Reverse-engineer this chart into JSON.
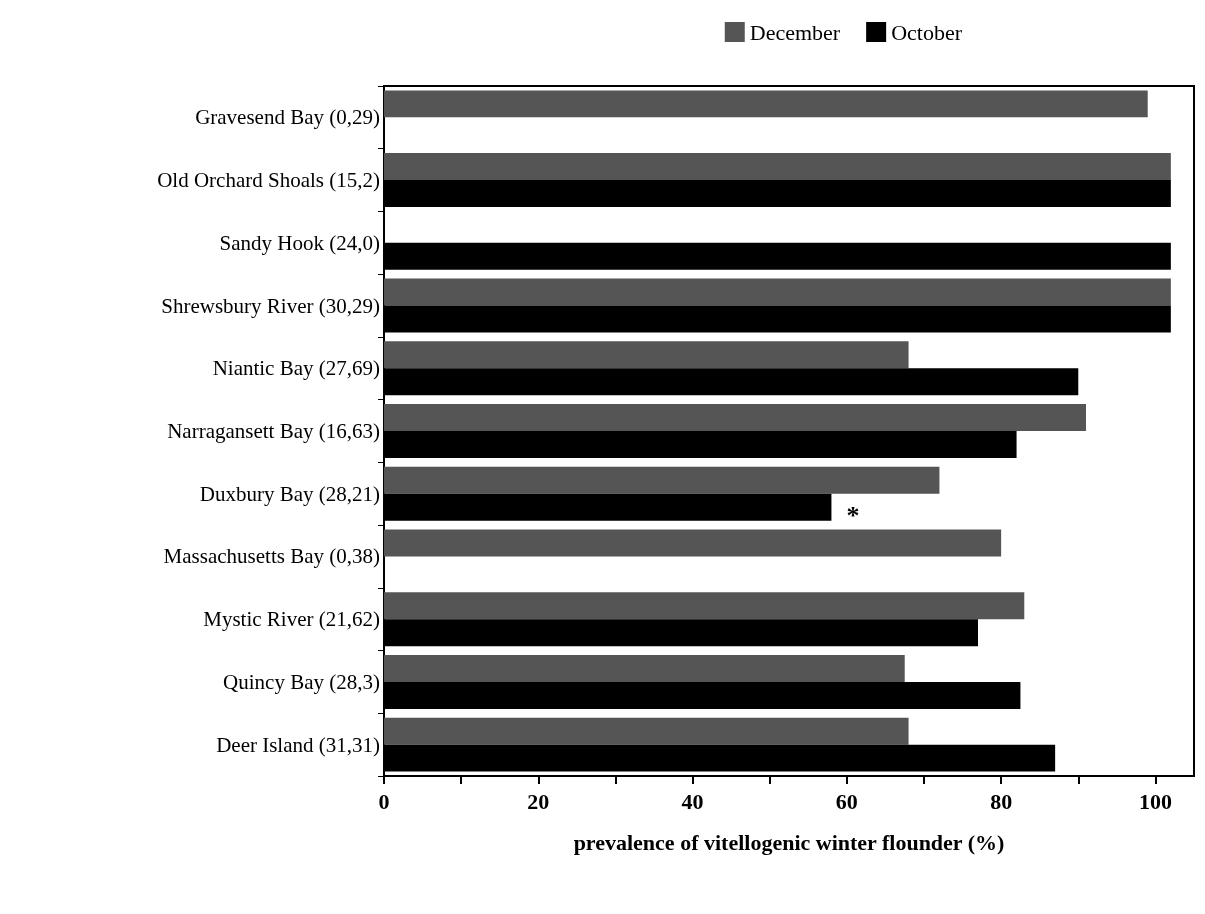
{
  "chart_data": {
    "type": "bar",
    "orientation": "horizontal",
    "xlabel": "prevalence of vitellogenic winter flounder (%)",
    "categories": [
      "Gravesend Bay (0,29)",
      "Old Orchard Shoals (15,2)",
      "Sandy Hook (24,0)",
      "Shrewsbury River (30,29)",
      "Niantic Bay (27,69)",
      "Narragansett Bay (16,63)",
      "Duxbury Bay (28,21)",
      "Massachusetts Bay (0,38)",
      "Mystic River (21,62)",
      "Quincy Bay (28,3)",
      "Deer Island (31,31)"
    ],
    "series": [
      {
        "name": "December",
        "color": "#555555",
        "values": [
          99,
          102,
          null,
          102,
          68,
          91,
          72,
          80,
          83,
          67.5,
          68
        ]
      },
      {
        "name": "October",
        "color": "#000000",
        "values": [
          null,
          102,
          102,
          102,
          90,
          82,
          58,
          null,
          77,
          82.5,
          87
        ]
      }
    ],
    "xlim": [
      0,
      105
    ],
    "xticks": [
      0,
      {
        "value": 10,
        "label": null
      },
      20,
      {
        "value": 30,
        "label": null
      },
      40,
      {
        "value": 50,
        "label": null
      },
      60,
      {
        "value": 70,
        "label": null
      },
      80,
      {
        "value": 90,
        "label": null
      },
      100
    ],
    "annotations": [
      {
        "text": "*",
        "x": 58,
        "y": "Duxbury Bay (28,21)"
      }
    ],
    "legend": "top right",
    "grid": false
  }
}
